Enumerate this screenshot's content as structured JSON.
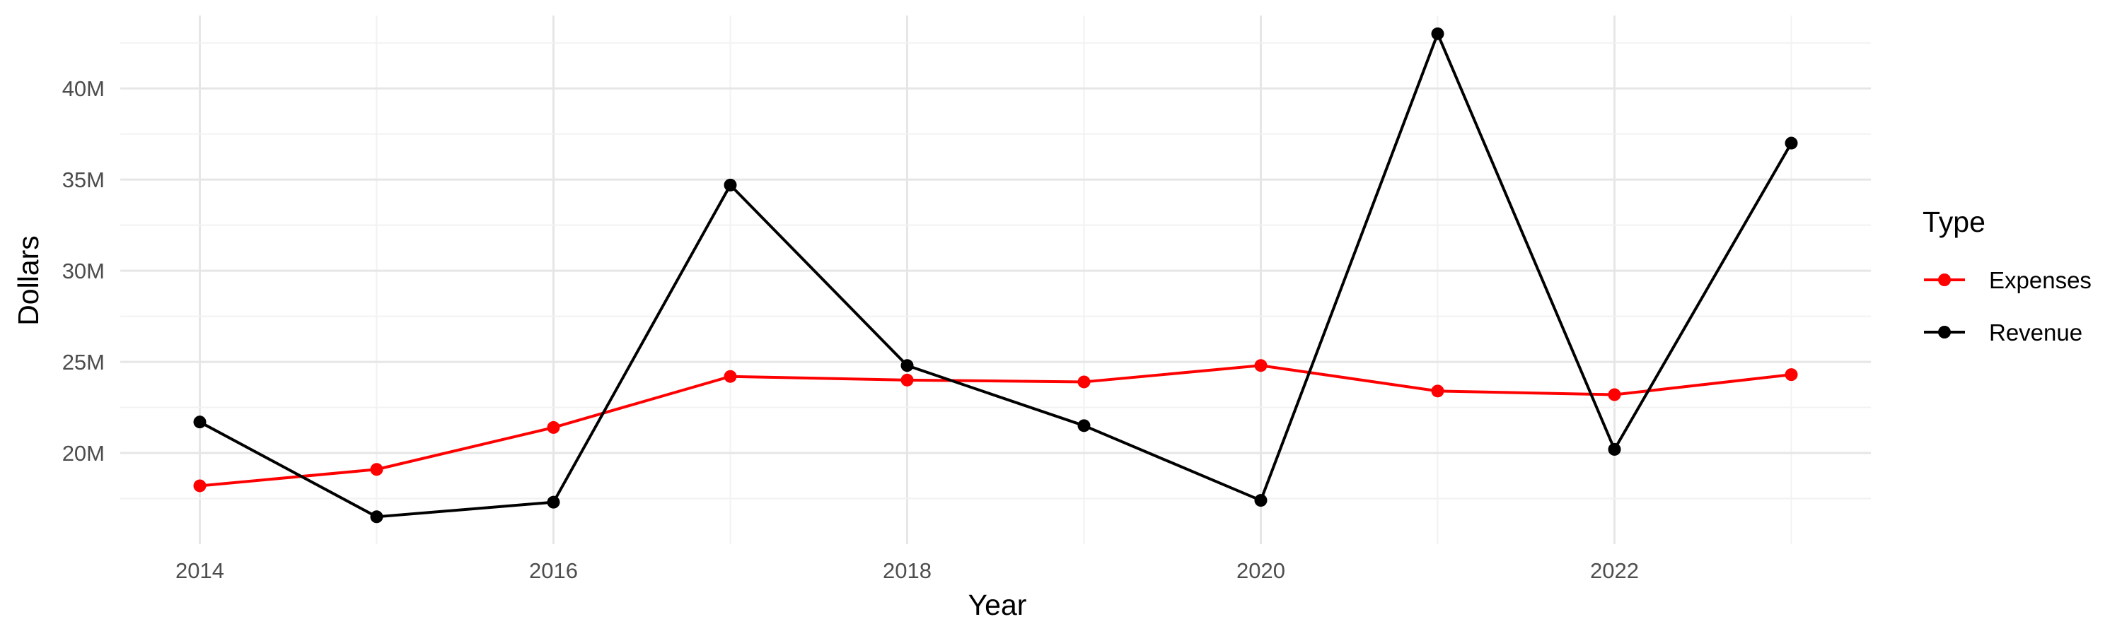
{
  "chart_data": {
    "type": "line",
    "title": "",
    "xlabel": "Year",
    "ylabel": "Dollars",
    "x": [
      2014,
      2015,
      2016,
      2017,
      2018,
      2019,
      2020,
      2021,
      2022,
      2023
    ],
    "x_tick_labels": [
      "2014",
      "2016",
      "2018",
      "2020",
      "2022"
    ],
    "y_tick_values": [
      20000000,
      25000000,
      30000000,
      35000000,
      40000000
    ],
    "y_tick_labels": [
      "20M",
      "25M",
      "30M",
      "35M",
      "40M"
    ],
    "xlim": [
      2013.55,
      2023.45
    ],
    "ylim": [
      15000000,
      44000000
    ],
    "grid": true,
    "legend": {
      "title": "Type",
      "placement": "right"
    },
    "series": [
      {
        "name": "Expenses",
        "color": "#ff0000",
        "values": [
          18200000,
          19100000,
          21400000,
          24200000,
          24000000,
          23900000,
          24800000,
          23400000,
          23200000,
          24300000
        ]
      },
      {
        "name": "Revenue",
        "color": "#000000",
        "values": [
          21700000,
          16500000,
          17300000,
          34700000,
          24800000,
          21500000,
          17400000,
          43000000,
          20200000,
          37000000
        ]
      }
    ]
  }
}
